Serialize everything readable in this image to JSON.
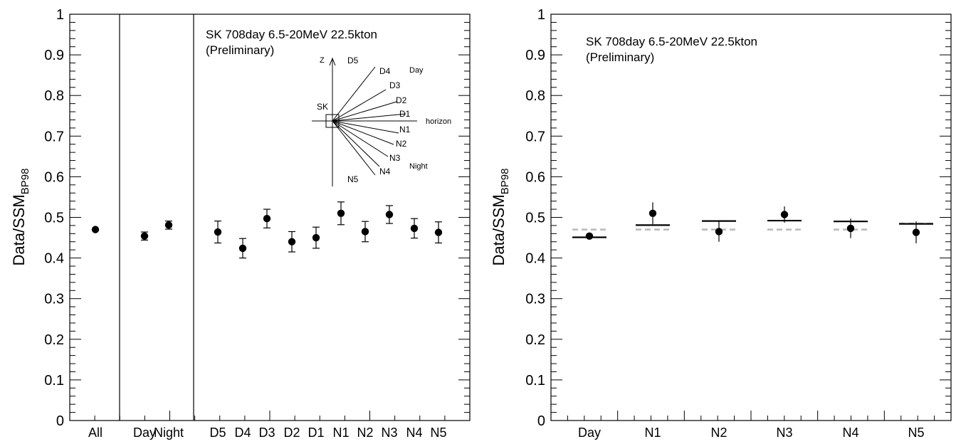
{
  "chart_data": [
    {
      "type": "scatter",
      "ylabel": "Data/SSM",
      "ylabel_sub": "BP98",
      "ylim": [
        0,
        1
      ],
      "yticks": [
        "0",
        "0.1",
        "0.2",
        "0.3",
        "0.4",
        "0.5",
        "0.6",
        "0.7",
        "0.8",
        "0.9",
        "1"
      ],
      "categories": [
        "All",
        "Day",
        "Night",
        "D5",
        "D4",
        "D3",
        "D2",
        "D1",
        "N1",
        "N2",
        "N3",
        "N4",
        "N5"
      ],
      "values": [
        0.47,
        0.454,
        0.481,
        0.464,
        0.424,
        0.497,
        0.44,
        0.45,
        0.51,
        0.465,
        0.507,
        0.473,
        0.463
      ],
      "errors": [
        0.0,
        0.01,
        0.01,
        0.027,
        0.024,
        0.023,
        0.025,
        0.026,
        0.028,
        0.025,
        0.022,
        0.024,
        0.026
      ],
      "annotation_line1": "SK 708day  6.5-20MeV  22.5kton",
      "annotation_line2": "(Preliminary)",
      "inset": {
        "z": "Z",
        "sk": "SK",
        "horizon": "horizon",
        "day": "Day",
        "night": "Night",
        "day_bins": [
          "D5",
          "D4",
          "D3",
          "D2",
          "D1"
        ],
        "night_bins": [
          "N1",
          "N2",
          "N3",
          "N4",
          "N5"
        ]
      }
    },
    {
      "type": "scatter",
      "ylabel": "Data/SSM",
      "ylabel_sub": "BP98",
      "ylim": [
        0,
        1
      ],
      "yticks": [
        "0",
        "0.1",
        "0.2",
        "0.3",
        "0.4",
        "0.5",
        "0.6",
        "0.7",
        "0.8",
        "0.9",
        "1"
      ],
      "categories": [
        "Day",
        "N1",
        "N2",
        "N3",
        "N4",
        "N5"
      ],
      "values": [
        0.454,
        0.51,
        0.465,
        0.507,
        0.473,
        0.463
      ],
      "errors": [
        0.008,
        0.027,
        0.025,
        0.02,
        0.024,
        0.027
      ],
      "expectation_solid": [
        0.451,
        0.481,
        0.491,
        0.492,
        0.49,
        0.484
      ],
      "expectation_dashed": [
        0.47,
        0.47,
        0.47,
        0.47,
        0.47,
        0.485
      ],
      "annotation_line1": "SK 708day  6.5-20MeV  22.5kton",
      "annotation_line2": "(Preliminary)"
    }
  ]
}
